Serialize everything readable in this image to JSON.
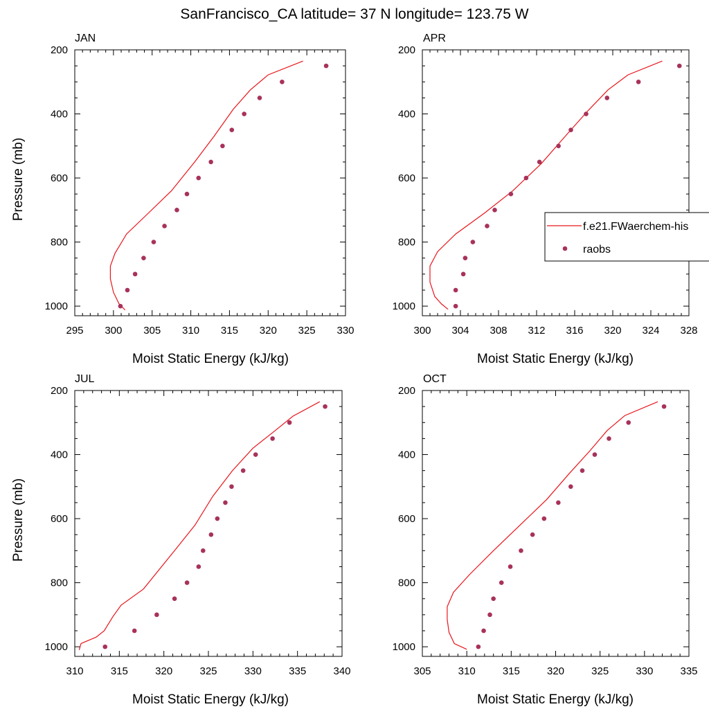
{
  "figure": {
    "title": "SanFrancisco_CA  latitude= 37 N longitude= 123.75 W"
  },
  "legend": {
    "model_label": "f.e21.FWaerchem-his",
    "obs_label": "raobs",
    "placement": "right-middle"
  },
  "colors": {
    "model": "#e8141a",
    "obs": "#a8325a"
  },
  "chart_data": [
    {
      "type": "line+scatter",
      "title": "JAN",
      "xlabel": "Moist Static Energy (kJ/kg)",
      "ylabel": "Pressure (mb)",
      "xlim": [
        295,
        330
      ],
      "ylim": [
        200,
        1000
      ],
      "y_reversed": true,
      "xticks": [
        295,
        300,
        305,
        310,
        315,
        320,
        325,
        330
      ],
      "yticks": [
        200,
        400,
        600,
        800,
        1000
      ],
      "series": [
        {
          "name": "f.e21.FWaerchem-his",
          "kind": "line",
          "points": [
            [
              301.5,
              1012
            ],
            [
              300.7,
              992
            ],
            [
              300.0,
              957
            ],
            [
              299.6,
              915
            ],
            [
              299.6,
              875
            ],
            [
              300.2,
              835
            ],
            [
              301.7,
              775
            ],
            [
              304.5,
              710
            ],
            [
              307.5,
              640
            ],
            [
              310.5,
              550
            ],
            [
              313.0,
              470
            ],
            [
              315.5,
              385
            ],
            [
              317.7,
              325
            ],
            [
              320.0,
              278
            ],
            [
              324.5,
              235
            ]
          ]
        },
        {
          "name": "raobs",
          "kind": "scatter",
          "points": [
            [
              300.9,
              1000
            ],
            [
              301.8,
              950
            ],
            [
              302.8,
              900
            ],
            [
              303.9,
              850
            ],
            [
              305.2,
              800
            ],
            [
              306.6,
              750
            ],
            [
              308.2,
              700
            ],
            [
              309.5,
              650
            ],
            [
              311.0,
              600
            ],
            [
              312.6,
              550
            ],
            [
              314.1,
              500
            ],
            [
              315.3,
              450
            ],
            [
              316.9,
              400
            ],
            [
              318.9,
              350
            ],
            [
              321.8,
              300
            ],
            [
              327.5,
              250
            ]
          ]
        }
      ]
    },
    {
      "type": "line+scatter",
      "title": "APR",
      "xlabel": "Moist Static Energy (kJ/kg)",
      "ylabel": "",
      "xlim": [
        300,
        328
      ],
      "ylim": [
        200,
        1000
      ],
      "y_reversed": true,
      "xticks": [
        300,
        304,
        308,
        312,
        316,
        320,
        324,
        328
      ],
      "yticks": [
        200,
        400,
        600,
        800,
        1000
      ],
      "series": [
        {
          "name": "f.e21.FWaerchem-his",
          "kind": "line",
          "points": [
            [
              302.7,
              1010
            ],
            [
              302.0,
              993
            ],
            [
              301.3,
              970
            ],
            [
              300.8,
              925
            ],
            [
              300.8,
              875
            ],
            [
              301.6,
              830
            ],
            [
              303.5,
              775
            ],
            [
              306.5,
              710
            ],
            [
              309.5,
              640
            ],
            [
              312.5,
              555
            ],
            [
              315.0,
              470
            ],
            [
              317.4,
              390
            ],
            [
              319.5,
              325
            ],
            [
              321.6,
              278
            ],
            [
              325.2,
              235
            ]
          ]
        },
        {
          "name": "raobs",
          "kind": "scatter",
          "points": [
            [
              303.5,
              1000
            ],
            [
              303.5,
              950
            ],
            [
              304.3,
              900
            ],
            [
              304.5,
              850
            ],
            [
              305.3,
              800
            ],
            [
              306.8,
              750
            ],
            [
              307.6,
              700
            ],
            [
              309.3,
              650
            ],
            [
              310.9,
              600
            ],
            [
              312.3,
              550
            ],
            [
              314.3,
              500
            ],
            [
              315.6,
              450
            ],
            [
              317.2,
              400
            ],
            [
              319.4,
              350
            ],
            [
              322.7,
              300
            ],
            [
              327.0,
              250
            ]
          ]
        }
      ]
    },
    {
      "type": "line+scatter",
      "title": "JUL",
      "xlabel": "Moist Static Energy (kJ/kg)",
      "ylabel": "Pressure (mb)",
      "xlim": [
        310,
        340
      ],
      "ylim": [
        200,
        1000
      ],
      "y_reversed": true,
      "xticks": [
        310,
        315,
        320,
        325,
        330,
        335,
        340
      ],
      "yticks": [
        200,
        400,
        600,
        800,
        1000
      ],
      "series": [
        {
          "name": "f.e21.FWaerchem-his",
          "kind": "line",
          "points": [
            [
              310.5,
              1010
            ],
            [
              310.7,
              990
            ],
            [
              312.4,
              970
            ],
            [
              313.3,
              950
            ],
            [
              314.3,
              905
            ],
            [
              315.2,
              870
            ],
            [
              317.7,
              820
            ],
            [
              321.2,
              700
            ],
            [
              323.5,
              620
            ],
            [
              325.5,
              530
            ],
            [
              327.7,
              450
            ],
            [
              330.0,
              380
            ],
            [
              332.5,
              325
            ],
            [
              334.5,
              280
            ],
            [
              337.5,
              235
            ]
          ]
        },
        {
          "name": "raobs",
          "kind": "scatter",
          "points": [
            [
              313.4,
              1000
            ],
            [
              316.7,
              950
            ],
            [
              319.2,
              900
            ],
            [
              321.2,
              850
            ],
            [
              322.6,
              800
            ],
            [
              323.9,
              750
            ],
            [
              324.4,
              700
            ],
            [
              325.3,
              650
            ],
            [
              326.0,
              600
            ],
            [
              326.9,
              550
            ],
            [
              327.6,
              500
            ],
            [
              328.9,
              450
            ],
            [
              330.3,
              400
            ],
            [
              332.2,
              350
            ],
            [
              334.1,
              300
            ],
            [
              338.1,
              250
            ]
          ]
        }
      ]
    },
    {
      "type": "line+scatter",
      "title": "OCT",
      "xlabel": "Moist Static Energy (kJ/kg)",
      "ylabel": "",
      "xlim": [
        305,
        335
      ],
      "ylim": [
        200,
        1000
      ],
      "y_reversed": true,
      "xticks": [
        305,
        310,
        315,
        320,
        325,
        330,
        335
      ],
      "yticks": [
        200,
        400,
        600,
        800,
        1000
      ],
      "series": [
        {
          "name": "f.e21.FWaerchem-his",
          "kind": "line",
          "points": [
            [
              310.0,
              1008
            ],
            [
              308.6,
              990
            ],
            [
              308.0,
              955
            ],
            [
              307.8,
              915
            ],
            [
              307.8,
              875
            ],
            [
              308.5,
              830
            ],
            [
              310.3,
              775
            ],
            [
              313.0,
              700
            ],
            [
              316.0,
              620
            ],
            [
              319.0,
              540
            ],
            [
              321.5,
              460
            ],
            [
              323.8,
              390
            ],
            [
              325.8,
              325
            ],
            [
              327.8,
              278
            ],
            [
              331.5,
              235
            ]
          ]
        },
        {
          "name": "raobs",
          "kind": "scatter",
          "points": [
            [
              311.3,
              1000
            ],
            [
              311.9,
              950
            ],
            [
              312.6,
              900
            ],
            [
              313.0,
              850
            ],
            [
              313.9,
              800
            ],
            [
              314.9,
              750
            ],
            [
              316.1,
              700
            ],
            [
              317.4,
              650
            ],
            [
              318.7,
              600
            ],
            [
              320.3,
              550
            ],
            [
              321.7,
              500
            ],
            [
              323.0,
              450
            ],
            [
              324.4,
              400
            ],
            [
              326.0,
              350
            ],
            [
              328.2,
              300
            ],
            [
              332.2,
              250
            ]
          ]
        }
      ]
    }
  ]
}
